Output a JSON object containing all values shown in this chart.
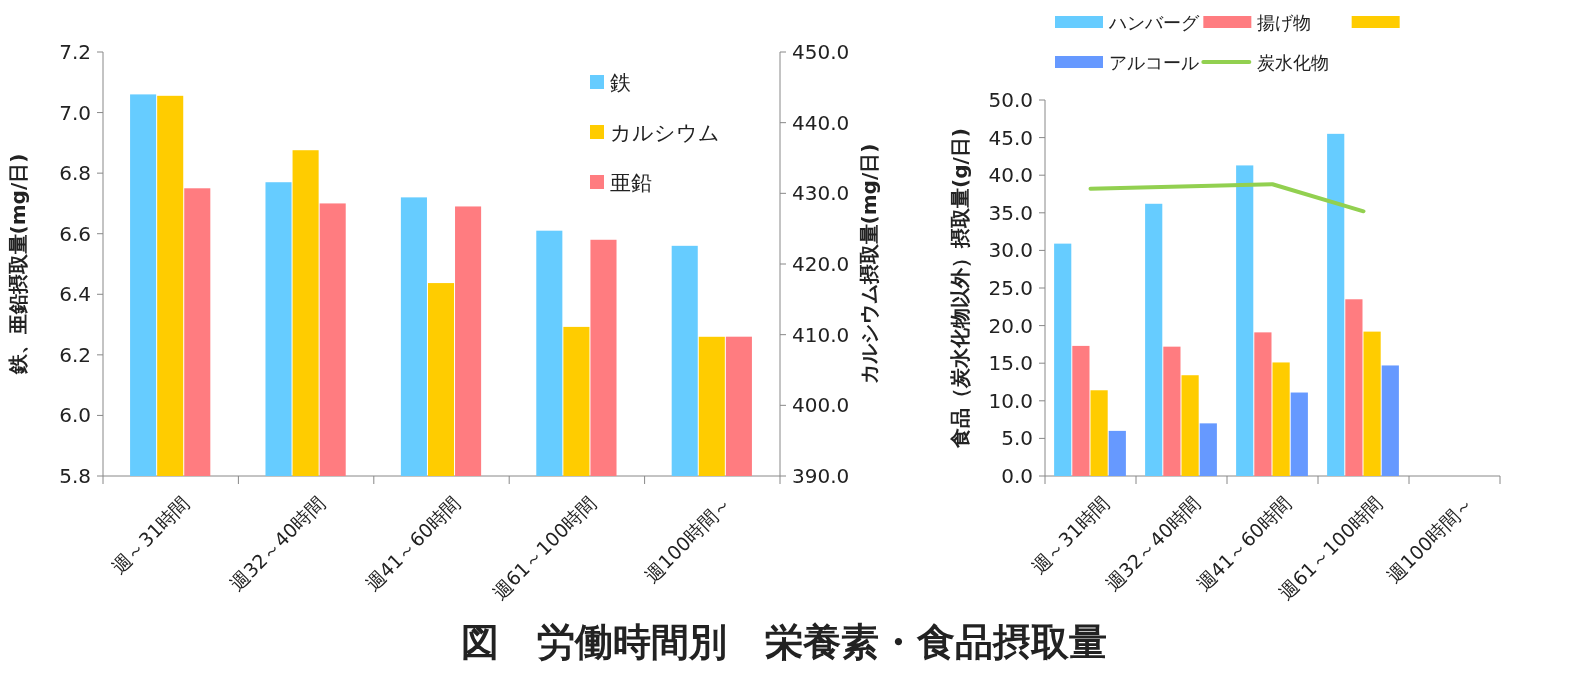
{
  "chart_data": [
    {
      "type": "bar",
      "title": "図　労働時間別　栄養素・食品摂取量",
      "categories": [
        "週～31時間",
        "週32～40時間",
        "週41～60時間",
        "週61～100時間",
        "週100時間～"
      ],
      "series": [
        {
          "name": "鉄",
          "color": "#66ccff",
          "values": [
            7.06,
            6.77,
            6.72,
            6.61,
            6.56
          ]
        },
        {
          "name": "カルシウム",
          "color": "#ffcc00",
          "axis": "y2",
          "values": [
            443.8,
            436.1,
            417.3,
            411.1,
            409.7
          ]
        },
        {
          "name": "亜鉛",
          "color": "#ff7c80",
          "values": [
            6.75,
            6.7,
            6.69,
            6.58,
            6.26
          ]
        }
      ],
      "ylabel": "鉄、亜鉛摂取量(mg/日)",
      "y2label": "カルシウム摂取量(mg/日)",
      "ylim": [
        5.8,
        7.2
      ],
      "yticks": [
        {
          "value": 5.8,
          "label": "5.8"
        },
        {
          "value": 6.0,
          "label": "6.0"
        },
        {
          "value": 6.2,
          "label": "6.2"
        },
        {
          "value": 6.4,
          "label": "6.4"
        },
        {
          "value": 6.6,
          "label": "6.6"
        },
        {
          "value": 6.8,
          "label": "6.8"
        },
        {
          "value": 7.0,
          "label": "7.0"
        },
        {
          "value": 7.2,
          "label": "7.2"
        }
      ],
      "y2lim": [
        390,
        450
      ],
      "y2ticks": [
        {
          "value": 390,
          "label": "390.0"
        },
        {
          "value": 400,
          "label": "400.0"
        },
        {
          "value": 410,
          "label": "410.0"
        },
        {
          "value": 420,
          "label": "420.0"
        },
        {
          "value": 430,
          "label": "430.0"
        },
        {
          "value": 440,
          "label": "440.0"
        },
        {
          "value": 450,
          "label": "450.0"
        }
      ],
      "legend": "top right"
    },
    {
      "type": "bar",
      "categories": [
        "週～31時間",
        "週32～40時間",
        "週41～60時間",
        "週61～100時間",
        "週100時間～"
      ],
      "series": [
        {
          "name": "ハンバーグ",
          "color": "#66ccff",
          "values": [
            30.9,
            36.2,
            41.3,
            45.5,
            null
          ]
        },
        {
          "name": "揚げ物",
          "color": "#ff7c80",
          "values": [
            17.3,
            17.2,
            19.1,
            23.5,
            null
          ]
        },
        {
          "color": "#ffcc00",
          "values": [
            11.4,
            13.4,
            15.1,
            19.2,
            null
          ]
        },
        {
          "name": "アルコール",
          "color": "#6699ff",
          "values": [
            6.0,
            7.0,
            11.1,
            14.7,
            null
          ]
        },
        {
          "name": "炭水化物",
          "type": "line",
          "color": "#92d050",
          "values": [
            38.2,
            38.5,
            38.8,
            35.2,
            null
          ]
        }
      ],
      "ylabel": "食品（炭水化物以外）摂取量(g/日)",
      "ylim": [
        0,
        50
      ],
      "yticks": [
        {
          "value": 0,
          "label": "0.0"
        },
        {
          "value": 5,
          "label": "5.0"
        },
        {
          "value": 10,
          "label": "10.0"
        },
        {
          "value": 15,
          "label": "15.0"
        },
        {
          "value": 20,
          "label": "20.0"
        },
        {
          "value": 25,
          "label": "25.0"
        },
        {
          "value": 30,
          "label": "30.0"
        },
        {
          "value": 35,
          "label": "35.0"
        },
        {
          "value": 40,
          "label": "40.0"
        },
        {
          "value": 45,
          "label": "45.0"
        },
        {
          "value": 50,
          "label": "50.0"
        }
      ],
      "legend": "top"
    }
  ]
}
